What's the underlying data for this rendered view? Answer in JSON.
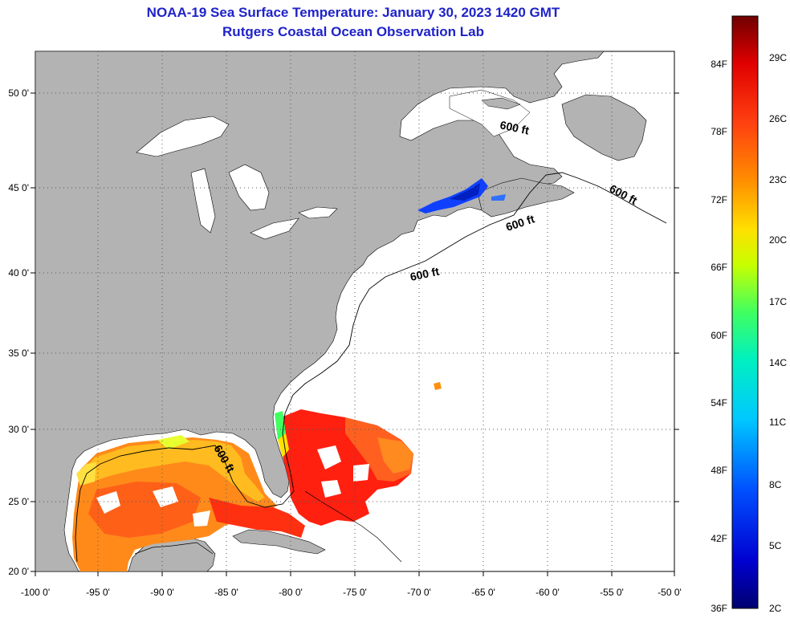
{
  "title_line1": "NOAA-19 Sea Surface Temperature:  January 30, 2023 1420 GMT",
  "title_line2": "Rutgers Coastal Ocean Observation Lab",
  "longitude_labels": [
    "-100 0'",
    "-95 0'",
    "-90 0'",
    "-85 0'",
    "-80 0'",
    "-75 0'",
    "-70 0'",
    "-65 0'",
    "-60 0'",
    "-55 0'",
    "-50 0'"
  ],
  "latitude_labels": [
    "50 0'",
    "45 0'",
    "40 0'",
    "35 0'",
    "30 0'",
    "25 0'",
    "20 0'"
  ],
  "contour_label": "600 ft",
  "colorbar": {
    "fahrenheit_labels": [
      "84F",
      "78F",
      "72F",
      "66F",
      "60F",
      "54F",
      "48F",
      "42F",
      "36F"
    ],
    "celsius_labels": [
      "29C",
      "26C",
      "23C",
      "20C",
      "17C",
      "14C",
      "11C",
      "8C",
      "5C",
      "2C"
    ]
  },
  "colors": {
    "title": "#1f23c8",
    "land": "#b3b3b3",
    "ocean_no_data": "#ffffff"
  }
}
